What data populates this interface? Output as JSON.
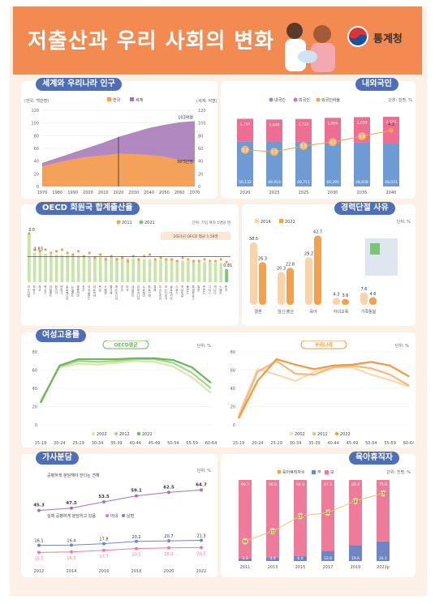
{
  "header": {
    "title": "저출산과 우리 사회의 변화",
    "org": "통계청"
  },
  "sections": {
    "pop": "세계와 우리나라 인구",
    "foreigners": "내외국인",
    "oecd": "OECD 회원국 합계출산율",
    "career": "경력단절 사유",
    "employment": "여성고용률",
    "housework": "가사분담",
    "childcare": "육아휴직자"
  },
  "charts": {
    "pop": {
      "type": "area",
      "units_left": "(한국: 백만명)",
      "units_right": "(세계: 억명)",
      "legend": [
        "한국",
        "세계"
      ],
      "x": [
        "1970",
        "1980",
        "1990",
        "2000",
        "2010",
        "2020",
        "2030",
        "2040",
        "2050",
        "2060",
        "2070"
      ],
      "korea": [
        32,
        38,
        43,
        47,
        49,
        52,
        51,
        50,
        47,
        42,
        38
      ],
      "world": [
        37,
        45,
        53,
        61,
        69,
        78,
        85,
        92,
        97,
        101,
        103
      ],
      "ylim": [
        0,
        120
      ],
      "yticks": [
        "0",
        "20",
        "40",
        "60",
        "80",
        "100",
        "120"
      ],
      "annot_world": "103억명",
      "annot_korea": "38백만명"
    },
    "foreigners": {
      "type": "bar",
      "units": "단위: 천명, %",
      "legend": [
        "내국인",
        "외국인",
        "외국인비율"
      ],
      "categories": [
        "2020",
        "2023",
        "2025",
        "2030",
        "2035",
        "2040"
      ],
      "domestic": [
        "50,132",
        "49,919",
        "49,711",
        "49,295",
        "48,838",
        "48,031"
      ],
      "foreign": [
        "1,704",
        "1,640",
        "1,729",
        "1,904",
        "2,039",
        "2,163"
      ],
      "ratio": [
        "3.3",
        "3.2",
        "3.5",
        "3.7",
        "4.0",
        "4.3"
      ],
      "domestic_v": [
        50132,
        49919,
        49711,
        49295,
        48838,
        48031
      ],
      "foreign_v": [
        1704,
        1640,
        1729,
        1904,
        2039,
        2163
      ],
      "ratio_v": [
        3.3,
        3.2,
        3.5,
        3.7,
        4.0,
        4.3
      ]
    },
    "oecd": {
      "type": "bar",
      "legend": [
        "2011",
        "2021"
      ],
      "units": "단위: 가임 여자 1명당 명",
      "avg_label": "2021년 OECD 평균 1.58명",
      "first_label": "3.0",
      "second_label": "1.83",
      "last_label": "0.81",
      "v2021": [
        3.0,
        1.83,
        1.8,
        1.75,
        1.7,
        1.7,
        1.68,
        1.66,
        1.64,
        1.62,
        1.6,
        1.58,
        1.56,
        1.55,
        1.53,
        1.52,
        1.5,
        1.5,
        1.48,
        1.46,
        1.45,
        1.43,
        1.42,
        1.4,
        1.39,
        1.38,
        1.37,
        1.35,
        1.33,
        1.3,
        1.28,
        1.25,
        1.25,
        1.2,
        1.19,
        1.18,
        0.81
      ],
      "v2011": [
        3.0,
        2.0,
        1.9,
        2.0,
        1.8,
        1.9,
        2.0,
        1.8,
        1.7,
        1.9,
        1.6,
        1.8,
        1.5,
        1.7,
        1.4,
        1.6,
        1.4,
        1.5,
        1.3,
        1.6,
        1.4,
        1.6,
        1.7,
        1.4,
        1.5,
        1.4,
        1.4,
        1.3,
        1.5,
        1.4,
        1.3,
        1.3,
        1.4,
        1.3,
        1.3,
        1.4,
        1.24
      ],
      "countries": [
        "이스라엘",
        "프랑스",
        "체코",
        "멕시코",
        "아일랜드",
        "헝가리",
        "덴마크",
        "슬로베니아",
        "뉴질랜드",
        "콜롬비아",
        "호주",
        "아이슬란드",
        "라트비아",
        "독일",
        "스웨덴",
        "벨기에",
        "에스토니아",
        "영국",
        "미국",
        "네덜란드",
        "리투아니아",
        "노르웨이",
        "튀르키예",
        "칠레",
        "오스트리아",
        "코스타리카",
        "슬로바키아",
        "스위스",
        "포르투갈",
        "폴란드",
        "룩셈부르크",
        "일본",
        "핀란드",
        "그리스",
        "캐나다",
        "스페인",
        "한국"
      ]
    },
    "career": {
      "type": "bar",
      "units": "단위: %",
      "legend": [
        "2014",
        "2022"
      ],
      "categories": [
        "결혼",
        "임신·출산",
        "육아",
        "자녀교육",
        "가족돌봄"
      ],
      "v2014": [
        38.5,
        20.3,
        29.2,
        4.3,
        7.6
      ],
      "v2022": [
        26.3,
        22.8,
        42.7,
        3.6,
        4.6
      ]
    },
    "emp_oecd": {
      "type": "line",
      "badge": "OECD평균",
      "units": "단위: %",
      "x": [
        "15-19",
        "20-24",
        "25-29",
        "30-34",
        "35-39",
        "40-44",
        "45-49",
        "50-54",
        "55-59",
        "60-64"
      ],
      "legend": [
        "2002",
        "2012",
        "2022"
      ],
      "s2002": [
        27,
        63,
        67,
        66,
        68,
        70,
        69,
        64,
        52,
        35
      ],
      "s2012": [
        25,
        64,
        70,
        69,
        70,
        72,
        72,
        68,
        57,
        40
      ],
      "s2022": [
        24,
        65,
        72,
        72,
        72,
        73,
        73,
        71,
        63,
        46
      ],
      "ylim": [
        0,
        80
      ],
      "yticks": [
        "0",
        "20",
        "40",
        "60",
        "80"
      ]
    },
    "emp_korea": {
      "type": "line",
      "badge": "우리나라",
      "units": "단위: %",
      "x": [
        "15-19",
        "20-24",
        "25-29",
        "30-34",
        "35-39",
        "40-44",
        "45-49",
        "50-54",
        "55-59",
        "60-64"
      ],
      "legend": [
        "2002",
        "2012",
        "2022"
      ],
      "s2002": [
        11,
        61,
        55,
        48,
        58,
        63,
        63,
        55,
        49,
        42
      ],
      "s2012": [
        8,
        58,
        70,
        56,
        55,
        63,
        65,
        62,
        55,
        43
      ],
      "s2022": [
        7,
        48,
        72,
        66,
        61,
        65,
        66,
        69,
        65,
        53
      ],
      "ylim": [
        0,
        80
      ],
      "yticks": [
        "0",
        "20",
        "40",
        "60",
        "80"
      ]
    },
    "housework": {
      "type": "line",
      "units": "단위: %",
      "x": [
        "2012",
        "2014",
        "2016",
        "2018",
        "2020",
        "2022"
      ],
      "top_label": "공평하게 분담해야 한다는 견해",
      "top": [
        45.3,
        47.5,
        53.5,
        59.1,
        62.5,
        64.7
      ],
      "top_l": [
        "45.3",
        "47.5",
        "53.5",
        "59.1",
        "62.5",
        "64.7"
      ],
      "mid_label": "실제 공평하게 분담하고 있음",
      "mid_legend": [
        "아내",
        "남편"
      ],
      "husband": [
        16.1,
        16.4,
        17.8,
        20.2,
        20.7,
        21.3
      ],
      "husband_l": [
        "16.1",
        "16.4",
        "17.8",
        "20.2",
        "20.7",
        "21.3"
      ],
      "wife": [
        15.5,
        16.0,
        17.7,
        19.5,
        20.2,
        20.5
      ],
      "wife_l": [
        "15.5",
        "16.0",
        "17.7",
        "19.5",
        "20.2",
        "20.5"
      ]
    },
    "childcare": {
      "type": "bar",
      "units": "단위: 천명, %",
      "legend": [
        "육아휴직자수",
        "부",
        "모"
      ],
      "categories": [
        "2011",
        "2013",
        "2015",
        "2017",
        "2019",
        "2021p"
      ],
      "mother": [
        96.7,
        96.0,
        94.0,
        87.2,
        80.4,
        75.9
      ],
      "father": [
        3.3,
        4.0,
        6.0,
        12.8,
        19.6,
        24.1
      ],
      "mother_l": [
        "96.7",
        "96.0",
        "94.0",
        "87.2",
        "80.4",
        "75.9"
      ],
      "father_l": [
        "3.3",
        "4.0",
        "6.0",
        "12.8",
        "19.6",
        "24.1"
      ],
      "total": [
        94,
        111,
        137,
        143,
        163,
        176
      ],
      "total_l": [
        "94",
        "111",
        "137",
        "143",
        "163",
        "176"
      ]
    }
  },
  "colors": {
    "banner": "#f28a52",
    "pill": "#4e6fb8",
    "korea": "#f4a15a",
    "world": "#a374b5",
    "domestic": "#6f9bd4",
    "foreign": "#ee6d93",
    "ratio": "#f5a048",
    "green": "#7cc576",
    "lightgreen": "#c9e4a9",
    "orange": "#f5a04a",
    "lightorange": "#fbd3ab",
    "pink": "#ef7b9b",
    "blue": "#6f86c6"
  }
}
